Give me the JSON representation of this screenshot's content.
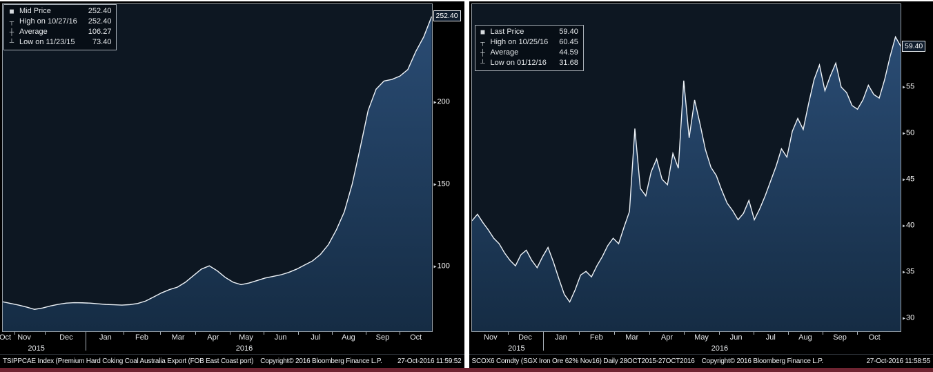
{
  "colors": {
    "line": "#eef3f8",
    "area_top": "#2a4c74",
    "area_bottom": "#152c44",
    "plot_background": "#0d1722",
    "panel_background": "#000000",
    "axis_spine": "#9aa2aa",
    "bottom_bar": "#6e2431"
  },
  "charts": [
    {
      "name": "coking-coal",
      "axis_tag": "252.40",
      "legend": {
        "rows": [
          {
            "icon": "series-square",
            "label": "Mid Price",
            "value": "252.40"
          },
          {
            "icon": "high-marker",
            "label": "High on 10/27/16",
            "value": "252.40"
          },
          {
            "icon": "average-marker",
            "label": "Average",
            "value": "106.27"
          },
          {
            "icon": "low-marker",
            "label": "Low on 11/23/15",
            "value": "73.40"
          }
        ]
      },
      "footer": {
        "security": "TSIPPCAE Index (Premium Hard Coking Coal Australia Export (FOB East Coast port)",
        "copyright": "Copyright© 2016 Bloomberg Finance L.P.",
        "timestamp": "27-Oct-2016 11:59:52"
      }
    },
    {
      "name": "iron-ore",
      "axis_tag": "59.40",
      "legend": {
        "rows": [
          {
            "icon": "series-square",
            "label": "Last Price",
            "value": "59.40"
          },
          {
            "icon": "high-marker",
            "label": "High on 10/25/16",
            "value": "60.45"
          },
          {
            "icon": "average-marker",
            "label": "Average",
            "value": "44.59"
          },
          {
            "icon": "low-marker",
            "label": "Low on 01/12/16",
            "value": "31.68"
          }
        ]
      },
      "footer": {
        "security": "SCOX6 Comdty (SGX Iron Ore 62% Nov16)  Daily 28OCT2015-27OCT2016",
        "copyright": "Copyright© 2016 Bloomberg Finance L.P.",
        "timestamp": "27-Oct-2016 11:58:55"
      }
    }
  ],
  "chart_data": [
    {
      "type": "area",
      "title": "TSIPPCAE Index (Premium Hard Coking Coal Australia Export (FOB East Coast port)",
      "legend_position": "top-left",
      "grid": false,
      "ylim": [
        60,
        260
      ],
      "yticks": [
        100,
        150,
        200
      ],
      "stats": {
        "mid_price": 252.4,
        "high": 252.4,
        "high_date": "10/27/16",
        "average": 106.27,
        "low": 73.4,
        "low_date": "11/23/15"
      },
      "series": [
        {
          "name": "Mid Price",
          "values": [
            78,
            77,
            76,
            74.8,
            73.4,
            74.2,
            75.5,
            76.5,
            77.2,
            77.5,
            77.4,
            77.2,
            76.8,
            76.4,
            76.2,
            76.0,
            76.3,
            77.0,
            78.5,
            81,
            83.5,
            85.5,
            87,
            90,
            94,
            98,
            100,
            97,
            93,
            90,
            88.5,
            89.5,
            91,
            92.5,
            93.5,
            94.5,
            96,
            98,
            100.5,
            103,
            107,
            113,
            122,
            133,
            150,
            172,
            195,
            208,
            213,
            214,
            216,
            220,
            231,
            240,
            252.4
          ]
        }
      ],
      "x_axis": {
        "months": [
          {
            "label": "Oct",
            "pos": 0.012
          },
          {
            "label": "Nov",
            "pos": 0.056
          },
          {
            "label": "Dec",
            "pos": 0.153
          },
          {
            "label": "Jan",
            "pos": 0.244
          },
          {
            "label": "Feb",
            "pos": 0.328
          },
          {
            "label": "Mar",
            "pos": 0.412
          },
          {
            "label": "Apr",
            "pos": 0.493
          },
          {
            "label": "May",
            "pos": 0.569
          },
          {
            "label": "Jun",
            "pos": 0.649
          },
          {
            "label": "Jul",
            "pos": 0.73
          },
          {
            "label": "Aug",
            "pos": 0.806
          },
          {
            "label": "Sep",
            "pos": 0.885
          },
          {
            "label": "Oct",
            "pos": 0.962
          }
        ],
        "years": [
          {
            "label": "2015",
            "pos": 0.084
          },
          {
            "label": "2016",
            "pos": 0.565
          }
        ],
        "year_boundary": 0.198
      }
    },
    {
      "type": "area",
      "title": "SCOX6 Comdty (SGX Iron Ore 62% Nov16)  Daily 28OCT2015-27OCT2016",
      "legend_position": "top-left",
      "grid": false,
      "ylim": [
        28.5,
        64
      ],
      "yticks": [
        30,
        35,
        40,
        45,
        50,
        55
      ],
      "stats": {
        "last_price": 59.4,
        "high": 60.45,
        "high_date": "10/25/16",
        "average": 44.59,
        "low": 31.68,
        "low_date": "01/12/16"
      },
      "series": [
        {
          "name": "Last Price",
          "values": [
            40.5,
            41.2,
            40.3,
            39.5,
            38.6,
            38.0,
            37.0,
            36.2,
            35.6,
            36.8,
            37.3,
            36.2,
            35.4,
            36.6,
            37.6,
            36.0,
            34.2,
            32.5,
            31.68,
            33.0,
            34.6,
            35.0,
            34.4,
            35.6,
            36.6,
            37.8,
            38.6,
            38.0,
            39.8,
            41.5,
            50.5,
            44.0,
            43.2,
            45.8,
            47.2,
            45.0,
            44.4,
            47.8,
            46.2,
            55.7,
            49.5,
            53.6,
            51.0,
            48.2,
            46.3,
            45.4,
            43.8,
            42.4,
            41.6,
            40.6,
            41.3,
            42.7,
            40.6,
            41.8,
            43.2,
            44.8,
            46.4,
            48.3,
            47.4,
            50.2,
            51.6,
            50.4,
            53.2,
            55.8,
            57.4,
            54.6,
            56.2,
            57.6,
            55.0,
            54.4,
            53.0,
            52.6,
            53.6,
            55.2,
            54.2,
            53.8,
            55.8,
            58.3,
            60.45,
            59.4
          ]
        }
      ],
      "x_axis": {
        "months": [
          {
            "label": "Nov",
            "pos": 0.05
          },
          {
            "label": "Dec",
            "pos": 0.13
          },
          {
            "label": "Jan",
            "pos": 0.213
          },
          {
            "label": "Feb",
            "pos": 0.295
          },
          {
            "label": "Mar",
            "pos": 0.377
          },
          {
            "label": "Apr",
            "pos": 0.458
          },
          {
            "label": "May",
            "pos": 0.538
          },
          {
            "label": "Jun",
            "pos": 0.618
          },
          {
            "label": "Jul",
            "pos": 0.698
          },
          {
            "label": "Aug",
            "pos": 0.778
          },
          {
            "label": "Sep",
            "pos": 0.858
          },
          {
            "label": "Oct",
            "pos": 0.938
          }
        ],
        "years": [
          {
            "label": "2015",
            "pos": 0.11
          },
          {
            "label": "2016",
            "pos": 0.58
          }
        ],
        "year_boundary": 0.171
      }
    }
  ]
}
